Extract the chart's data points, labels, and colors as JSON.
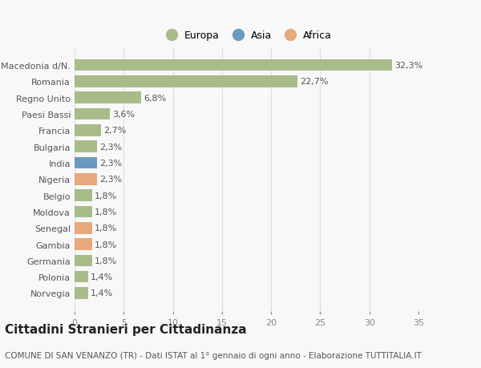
{
  "categories": [
    "Norvegia",
    "Polonia",
    "Germania",
    "Gambia",
    "Senegal",
    "Moldova",
    "Belgio",
    "Nigeria",
    "India",
    "Bulgaria",
    "Francia",
    "Paesi Bassi",
    "Regno Unito",
    "Romania",
    "Macedonia d/N."
  ],
  "values": [
    1.4,
    1.4,
    1.8,
    1.8,
    1.8,
    1.8,
    1.8,
    2.3,
    2.3,
    2.3,
    2.7,
    3.6,
    6.8,
    22.7,
    32.3
  ],
  "colors": [
    "#a8bc8a",
    "#a8bc8a",
    "#a8bc8a",
    "#e8a87c",
    "#e8a87c",
    "#a8bc8a",
    "#a8bc8a",
    "#e8a87c",
    "#6b9abf",
    "#a8bc8a",
    "#a8bc8a",
    "#a8bc8a",
    "#a8bc8a",
    "#a8bc8a",
    "#a8bc8a"
  ],
  "continent_colors": {
    "Europa": "#a8bc8a",
    "Asia": "#6b9abf",
    "Africa": "#e8a87c"
  },
  "title": "Cittadini Stranieri per Cittadinanza",
  "subtitle": "COMUNE DI SAN VENANZO (TR) - Dati ISTAT al 1° gennaio di ogni anno - Elaborazione TUTTITALIA.IT",
  "xlim": [
    0,
    35
  ],
  "xticks": [
    0,
    5,
    10,
    15,
    20,
    25,
    30,
    35
  ],
  "background_color": "#f8f8f8",
  "bar_height": 0.72,
  "grid_color": "#dddddd",
  "label_fontsize": 8,
  "tick_fontsize": 8,
  "title_fontsize": 11,
  "subtitle_fontsize": 7.5
}
